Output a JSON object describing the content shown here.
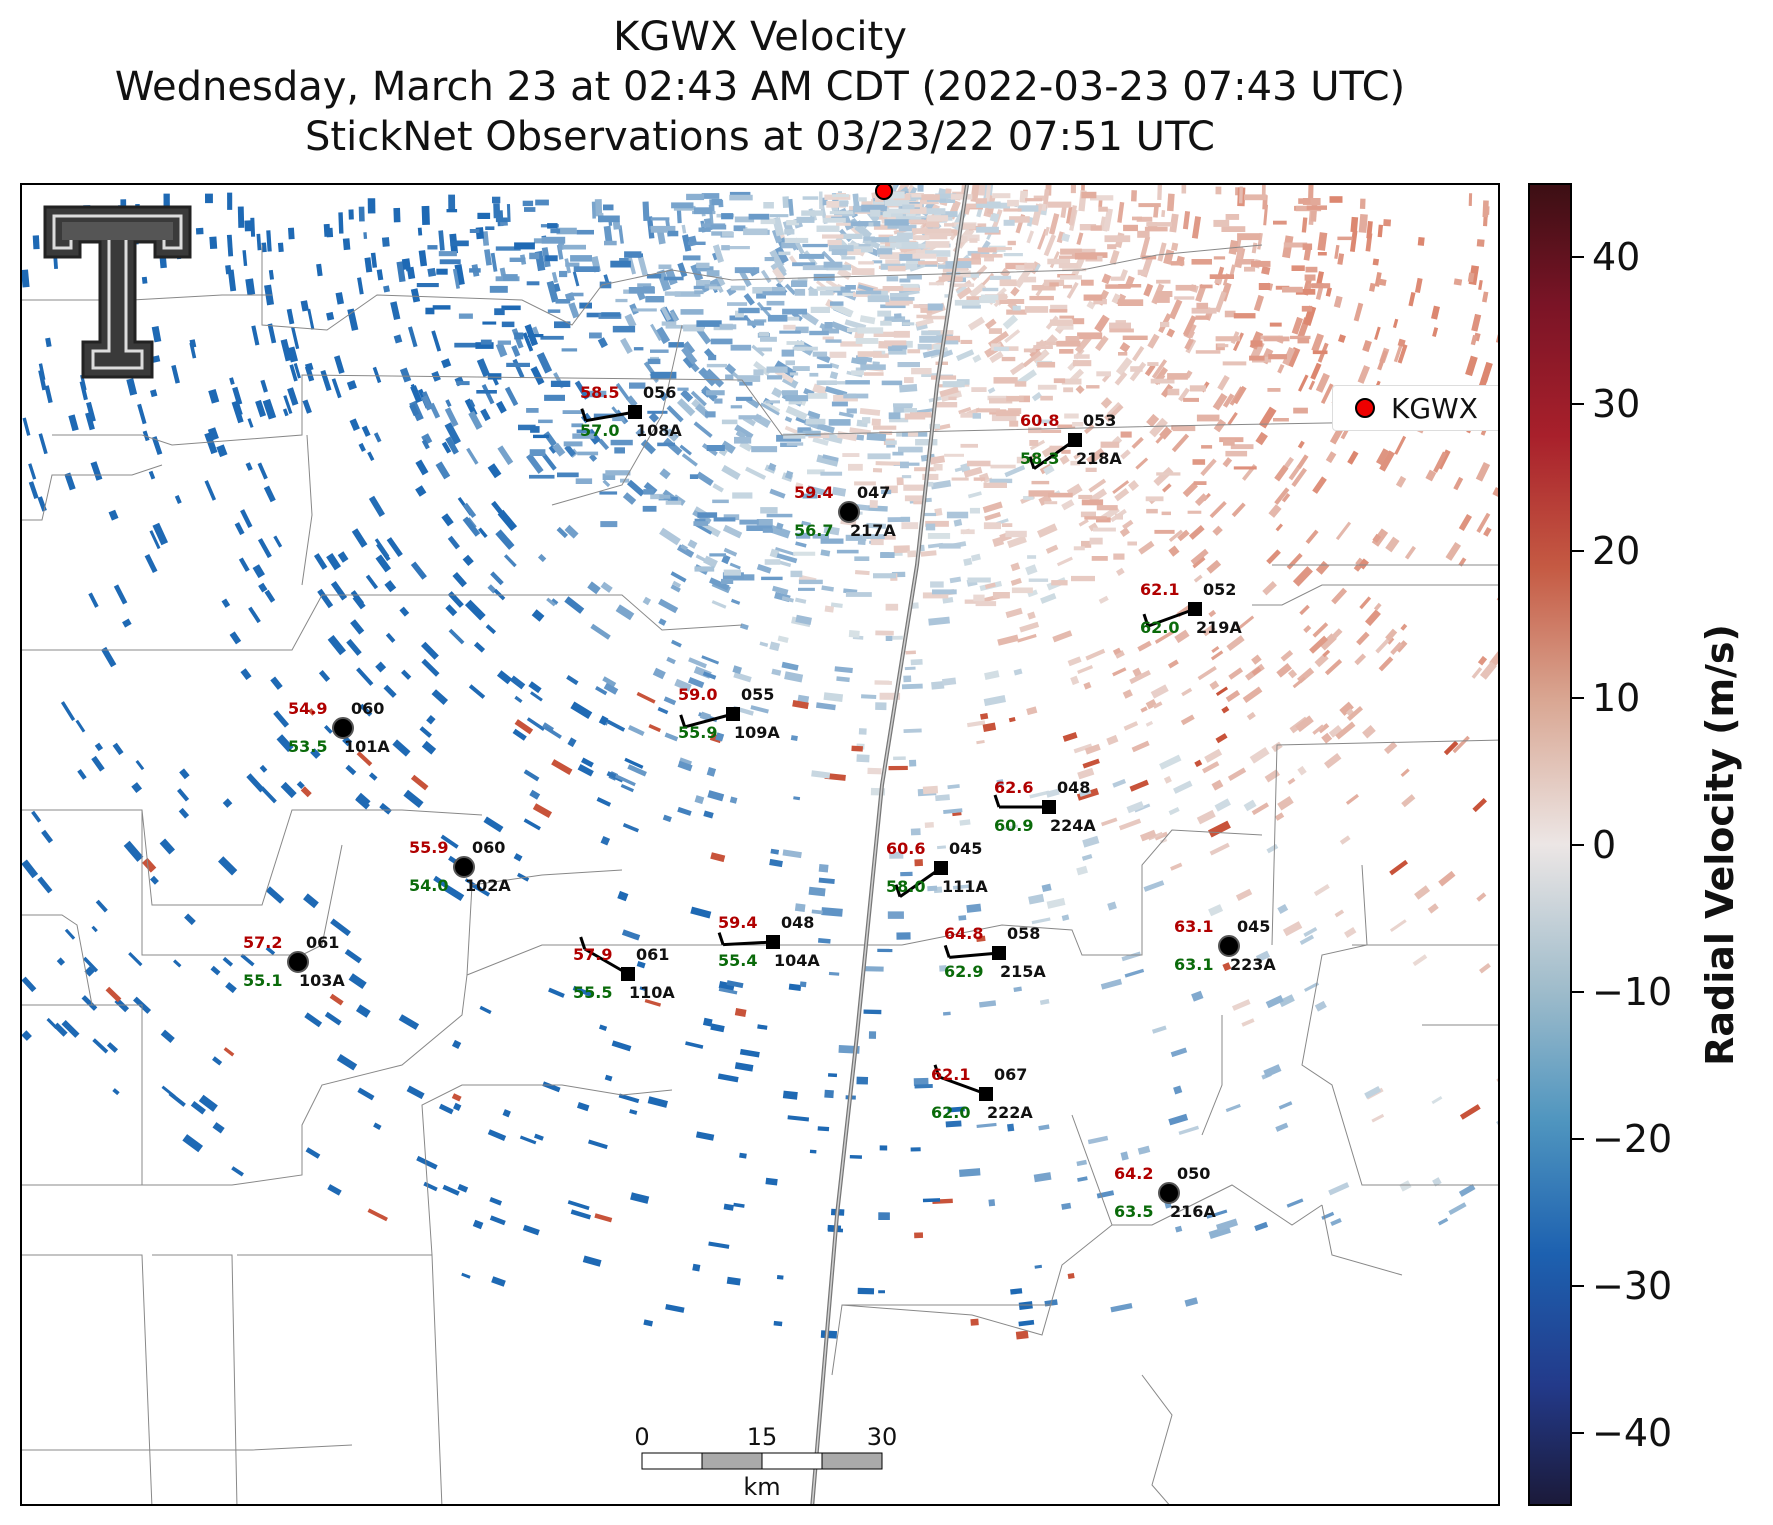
{
  "title": {
    "line1": "KGWX Velocity",
    "line2": "Wednesday, March 23 at 02:43 AM CDT (2022-03-23 07:43 UTC)",
    "line3": "StickNet Observations at 03/23/22 07:51 UTC"
  },
  "legend": {
    "label": "KGWX"
  },
  "colorbar": {
    "label": "Radial Velocity (m/s)",
    "range": [
      -45,
      45
    ],
    "ticks": [
      "40",
      "30",
      "20",
      "10",
      "0",
      "−10",
      "−20",
      "−30",
      "−40"
    ]
  },
  "scale_bar": {
    "ticks": [
      "0",
      "15",
      "30"
    ],
    "unit": "km"
  },
  "stations": [
    {
      "id": "108A",
      "temp": "58.5",
      "dew": "57.0",
      "pres": "056",
      "marker": "square"
    },
    {
      "id": "218A",
      "temp": "60.8",
      "dew": "58.3",
      "pres": "053",
      "marker": "square"
    },
    {
      "id": "217A",
      "temp": "59.4",
      "dew": "56.7",
      "pres": "047",
      "marker": "circle"
    },
    {
      "id": "219A",
      "temp": "62.1",
      "dew": "62.0",
      "pres": "052",
      "marker": "square"
    },
    {
      "id": "101A",
      "temp": "54.9",
      "dew": "53.5",
      "pres": "060",
      "marker": "circle"
    },
    {
      "id": "109A",
      "temp": "59.0",
      "dew": "55.9",
      "pres": "055",
      "marker": "square"
    },
    {
      "id": "224A",
      "temp": "62.6",
      "dew": "60.9",
      "pres": "048",
      "marker": "square"
    },
    {
      "id": "102A",
      "temp": "55.9",
      "dew": "54.0",
      "pres": "060",
      "marker": "circle"
    },
    {
      "id": "111A",
      "temp": "60.6",
      "dew": "58.0",
      "pres": "045",
      "marker": "square"
    },
    {
      "id": "104A",
      "temp": "59.4",
      "dew": "55.4",
      "pres": "048",
      "marker": "square"
    },
    {
      "id": "215A",
      "temp": "64.8",
      "dew": "62.9",
      "pres": "058",
      "marker": "square"
    },
    {
      "id": "223A",
      "temp": "63.1",
      "dew": "63.1",
      "pres": "045",
      "marker": "circle"
    },
    {
      "id": "103A",
      "temp": "57.2",
      "dew": "55.1",
      "pres": "061",
      "marker": "circle"
    },
    {
      "id": "110A",
      "temp": "57.9",
      "dew": "55.5",
      "pres": "061",
      "marker": "square"
    },
    {
      "id": "222A",
      "temp": "62.1",
      "dew": "62.0",
      "pres": "067",
      "marker": "square"
    },
    {
      "id": "216A",
      "temp": "64.2",
      "dew": "63.5",
      "pres": "050",
      "marker": "circle"
    }
  ],
  "colors": {
    "radar_site": "#ff0000",
    "temp": "#b00000",
    "dewpoint": "#0a6a0a"
  }
}
